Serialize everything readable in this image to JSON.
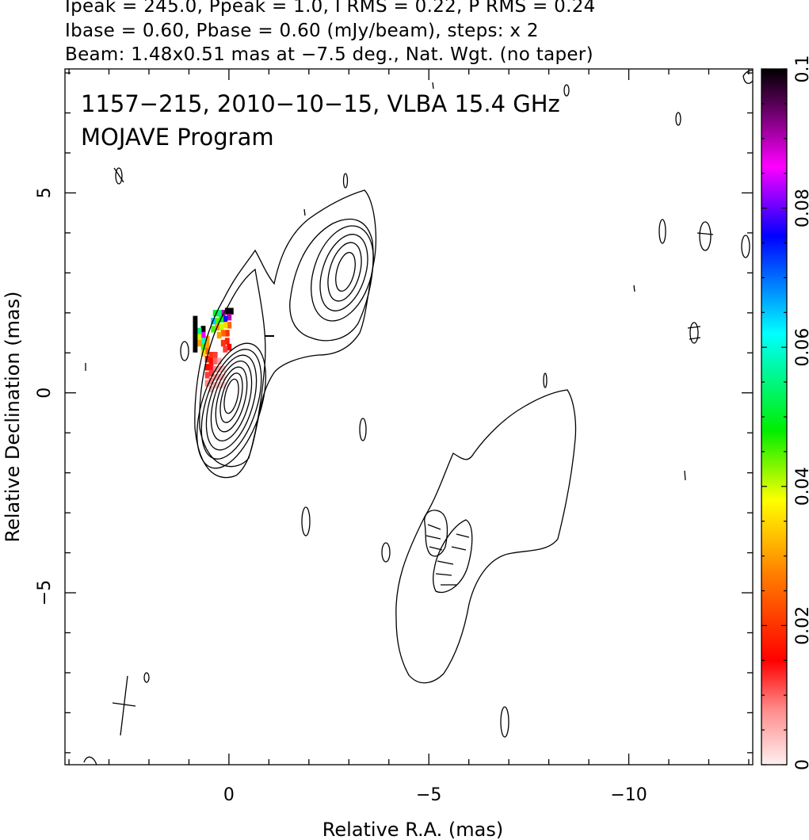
{
  "header": {
    "line1": "Ipeak = 245.0, Ppeak = 1.0, I RMS = 0.22, P RMS = 0.24",
    "line2": "Ibase = 0.60, Pbase = 0.60 (mJy/beam), steps: x 2",
    "line3": "Beam: 1.48x0.51 mas at −7.5 deg., Nat. Wgt. (no taper)"
  },
  "annotation": {
    "line1": "1157−215, 2010−10−15, VLBA 15.4 GHz",
    "line2": "MOJAVE Program"
  },
  "colorbar_ticks": [
    "0",
    "0.02",
    "0.04",
    "0.06",
    "0.08",
    "0.1"
  ],
  "chart_data": {
    "type": "contour",
    "xlabel": "Relative R.A. (mas)",
    "ylabel": "Relative Declination (mas)",
    "xlim": [
      4.1,
      -13.1
    ],
    "ylim": [
      -9.3,
      8.1
    ],
    "x_ticks": [
      0,
      -5,
      -10
    ],
    "x_tick_labels": [
      "0",
      "−5",
      "−10"
    ],
    "y_ticks": [
      5,
      0,
      -5
    ],
    "y_tick_labels": [
      "5",
      "0",
      "−5"
    ],
    "colorbar": {
      "range": [
        0,
        0.1
      ],
      "ticks": [
        0,
        0.02,
        0.04,
        0.06,
        0.08,
        0.1
      ]
    },
    "core": {
      "x": 0,
      "y": 0
    },
    "knot": {
      "x": -2.8,
      "y": 3.1
    },
    "contour_levels_mJy": [
      0.6,
      1.2,
      2.4,
      4.8,
      9.6,
      19.2,
      38.4,
      76.8,
      153.6
    ],
    "beam": {
      "major_mas": 1.48,
      "minor_mas": 0.51,
      "pa_deg": -7.5,
      "x": 2.6,
      "y": -7.6
    },
    "polarization_pixels": [
      {
        "x": -0.05,
        "y": 2.05,
        "v": 0.1
      },
      {
        "x": 0.05,
        "y": 2.05,
        "v": 0.1
      },
      {
        "x": 0.15,
        "y": 2.0,
        "v": 0.09
      },
      {
        "x": 0.25,
        "y": 2.0,
        "v": 0.055
      },
      {
        "x": 0.35,
        "y": 2.0,
        "v": 0.05
      },
      {
        "x": 0.0,
        "y": 1.9,
        "v": 0.09
      },
      {
        "x": 0.1,
        "y": 1.85,
        "v": 0.075
      },
      {
        "x": 0.2,
        "y": 1.85,
        "v": 0.05
      },
      {
        "x": 0.3,
        "y": 1.8,
        "v": 0.045
      },
      {
        "x": 0.4,
        "y": 1.8,
        "v": 0.065
      },
      {
        "x": 0.0,
        "y": 1.7,
        "v": 0.025
      },
      {
        "x": 0.1,
        "y": 1.7,
        "v": 0.035
      },
      {
        "x": 0.2,
        "y": 1.65,
        "v": 0.04
      },
      {
        "x": 0.3,
        "y": 1.65,
        "v": 0.03
      },
      {
        "x": 0.4,
        "y": 1.6,
        "v": 0.045
      },
      {
        "x": 0.05,
        "y": 1.5,
        "v": 0.02
      },
      {
        "x": 0.15,
        "y": 1.5,
        "v": 0.025
      },
      {
        "x": 0.25,
        "y": 1.45,
        "v": 0.03
      },
      {
        "x": 0.05,
        "y": 1.3,
        "v": 0.018
      },
      {
        "x": 0.15,
        "y": 1.25,
        "v": 0.02
      },
      {
        "x": 0.0,
        "y": 1.15,
        "v": 0.015
      },
      {
        "x": 0.1,
        "y": 1.1,
        "v": 0.012
      },
      {
        "x": 0.55,
        "y": 1.35,
        "v": 0.03
      },
      {
        "x": 0.55,
        "y": 1.2,
        "v": 0.03
      },
      {
        "x": 0.55,
        "y": 1.05,
        "v": 0.025
      },
      {
        "x": 0.65,
        "y": 1.6,
        "v": 0.1
      },
      {
        "x": 0.65,
        "y": 1.45,
        "v": 0.085
      },
      {
        "x": 0.65,
        "y": 1.3,
        "v": 0.06
      },
      {
        "x": 0.65,
        "y": 1.15,
        "v": 0.045
      },
      {
        "x": 0.65,
        "y": 1.0,
        "v": 0.035
      },
      {
        "x": 0.75,
        "y": 1.55,
        "v": 0.055
      },
      {
        "x": 0.75,
        "y": 1.4,
        "v": 0.04
      },
      {
        "x": 0.75,
        "y": 1.25,
        "v": 0.03
      },
      {
        "x": 0.85,
        "y": 1.85,
        "v": 0.1
      },
      {
        "x": 0.85,
        "y": 1.7,
        "v": 0.1
      },
      {
        "x": 0.85,
        "y": 1.55,
        "v": 0.1
      },
      {
        "x": 0.85,
        "y": 1.4,
        "v": 0.1
      },
      {
        "x": 0.85,
        "y": 1.25,
        "v": 0.1
      },
      {
        "x": 0.85,
        "y": 1.1,
        "v": 0.1
      },
      {
        "x": 0.45,
        "y": 0.95,
        "v": 0.02
      },
      {
        "x": 0.45,
        "y": 0.8,
        "v": 0.016
      },
      {
        "x": 0.45,
        "y": 0.65,
        "v": 0.014
      },
      {
        "x": 0.35,
        "y": 0.95,
        "v": 0.012
      },
      {
        "x": 0.35,
        "y": 0.8,
        "v": 0.01
      },
      {
        "x": 0.35,
        "y": 0.6,
        "v": 0.008
      },
      {
        "x": 0.25,
        "y": 0.8,
        "v": 0.006
      },
      {
        "x": 0.25,
        "y": 0.6,
        "v": 0.005
      },
      {
        "x": 0.25,
        "y": 0.4,
        "v": 0.005
      },
      {
        "x": 0.15,
        "y": 0.6,
        "v": 0.004
      },
      {
        "x": 0.15,
        "y": 0.4,
        "v": 0.004
      },
      {
        "x": 0.15,
        "y": 0.2,
        "v": 0.003
      },
      {
        "x": 0.35,
        "y": 0.4,
        "v": 0.006
      },
      {
        "x": 0.35,
        "y": 0.2,
        "v": 0.004
      },
      {
        "x": 0.25,
        "y": 0.2,
        "v": 0.003
      },
      {
        "x": 0.45,
        "y": 0.5,
        "v": 0.012
      },
      {
        "x": 0.45,
        "y": 0.3,
        "v": 0.008
      },
      {
        "x": 0.45,
        "y": 0.1,
        "v": 0.005
      },
      {
        "x": 0.55,
        "y": 0.85,
        "v": 0.018
      },
      {
        "x": 0.55,
        "y": 0.65,
        "v": 0.016
      },
      {
        "x": 0.55,
        "y": 0.45,
        "v": 0.012
      },
      {
        "x": 0.55,
        "y": 0.25,
        "v": 0.008
      }
    ]
  }
}
